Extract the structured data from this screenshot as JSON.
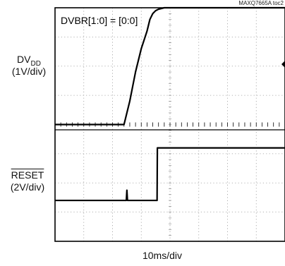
{
  "figure_code": "MAXQ7665A toc2",
  "chart_data": {
    "type": "line",
    "title": "",
    "annotation": "DVBR[1:0] = [0:0]",
    "xlabel": "10ms/div",
    "grid": true,
    "x_divisions": 8,
    "y_divisions": 8,
    "channels": [
      {
        "name_main": "DV",
        "name_sub": "DD",
        "scale": "(1V/div)"
      },
      {
        "name": "RESET",
        "overlined": true,
        "scale": "(2V/div)"
      }
    ],
    "series": [
      {
        "name": "DVDD",
        "units": "divisions",
        "x": [
          0,
          2.4,
          2.6,
          2.8,
          3.0,
          3.2,
          3.3,
          3.4,
          3.5,
          3.6,
          3.8,
          4.2,
          8.0
        ],
        "y": [
          4.0,
          4.0,
          4.8,
          5.8,
          6.6,
          7.2,
          7.6,
          7.8,
          7.9,
          7.95,
          8.0,
          8.0,
          8.0
        ]
      },
      {
        "name": "RESET",
        "units": "divisions",
        "x": [
          0,
          2.48,
          2.5,
          2.52,
          3.55,
          3.56,
          8.0
        ],
        "y": [
          1.4,
          1.4,
          1.75,
          1.4,
          1.4,
          3.2,
          3.2
        ]
      }
    ]
  }
}
